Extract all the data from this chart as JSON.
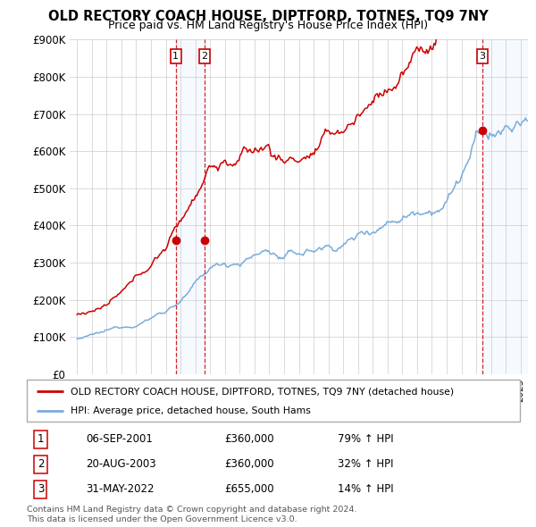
{
  "title": "OLD RECTORY COACH HOUSE, DIPTFORD, TOTNES, TQ9 7NY",
  "subtitle": "Price paid vs. HM Land Registry's House Price Index (HPI)",
  "ylim": [
    0,
    900000
  ],
  "yticks": [
    0,
    100000,
    200000,
    300000,
    400000,
    500000,
    600000,
    700000,
    800000,
    900000
  ],
  "ytick_labels": [
    "£0",
    "£100K",
    "£200K",
    "£300K",
    "£400K",
    "£500K",
    "£600K",
    "£700K",
    "£800K",
    "£900K"
  ],
  "xlim_start": 1994.5,
  "xlim_end": 2025.5,
  "red_line_color": "#cc0000",
  "blue_line_color": "#7aabdc",
  "sale1_x": 2001.68,
  "sale1_y": 360000,
  "sale1_label": "1",
  "sale2_x": 2003.63,
  "sale2_y": 360000,
  "sale2_label": "2",
  "sale3_x": 2022.41,
  "sale3_y": 655000,
  "sale3_label": "3",
  "shade_color": "#ddeeff",
  "legend_red_label": "OLD RECTORY COACH HOUSE, DIPTFORD, TOTNES, TQ9 7NY (detached house)",
  "legend_blue_label": "HPI: Average price, detached house, South Hams",
  "table_rows": [
    {
      "num": "1",
      "date": "06-SEP-2001",
      "price": "£360,000",
      "hpi": "79% ↑ HPI"
    },
    {
      "num": "2",
      "date": "20-AUG-2003",
      "price": "£360,000",
      "hpi": "32% ↑ HPI"
    },
    {
      "num": "3",
      "date": "31-MAY-2022",
      "price": "£655,000",
      "hpi": "14% ↑ HPI"
    }
  ],
  "footer": "Contains HM Land Registry data © Crown copyright and database right 2024.\nThis data is licensed under the Open Government Licence v3.0.",
  "background_color": "#ffffff",
  "grid_color": "#cccccc"
}
